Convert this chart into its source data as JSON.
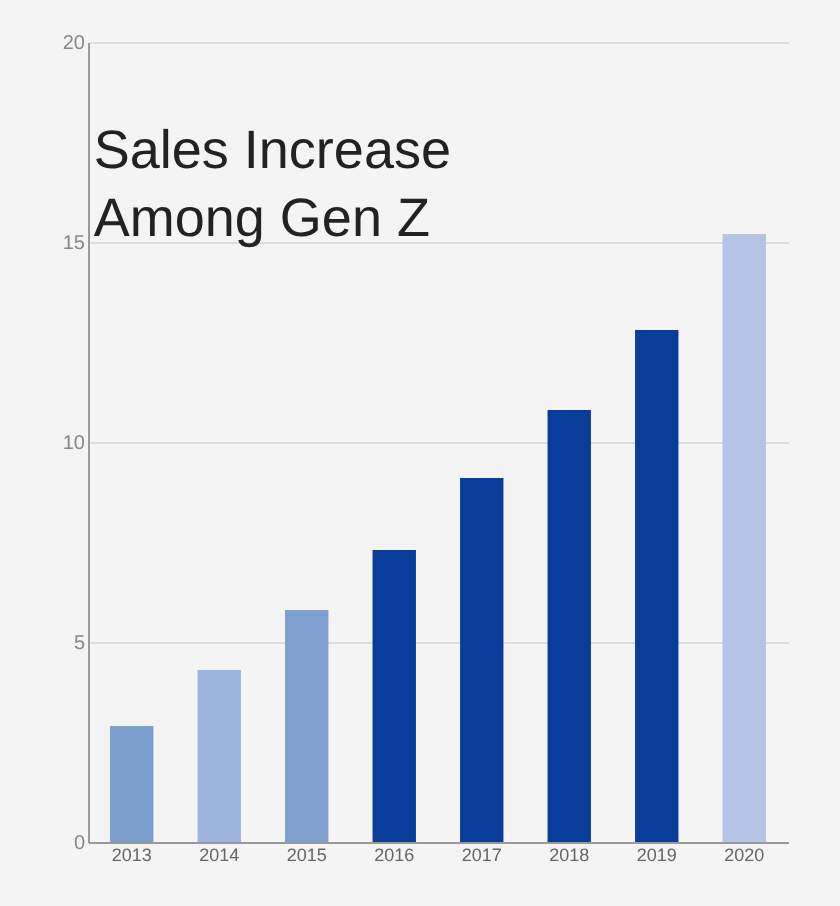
{
  "chart_data": {
    "type": "bar",
    "title": "Sales Increase\nAmong Gen Z",
    "categories": [
      "2013",
      "2014",
      "2015",
      "2016",
      "2017",
      "2018",
      "2019",
      "2020"
    ],
    "values": [
      2.9,
      4.3,
      5.8,
      7.3,
      9.1,
      10.8,
      12.8,
      15.2
    ],
    "colors": [
      "#7c9fd0",
      "#9db4dc",
      "#7f9fcf",
      "#0a3d9a",
      "#0a3d9a",
      "#0a3d9a",
      "#0a3d9a",
      "#b4c4e4"
    ],
    "ylim": [
      0,
      20
    ],
    "yticks": [
      0,
      5,
      10,
      15,
      20
    ],
    "grid": "y"
  }
}
